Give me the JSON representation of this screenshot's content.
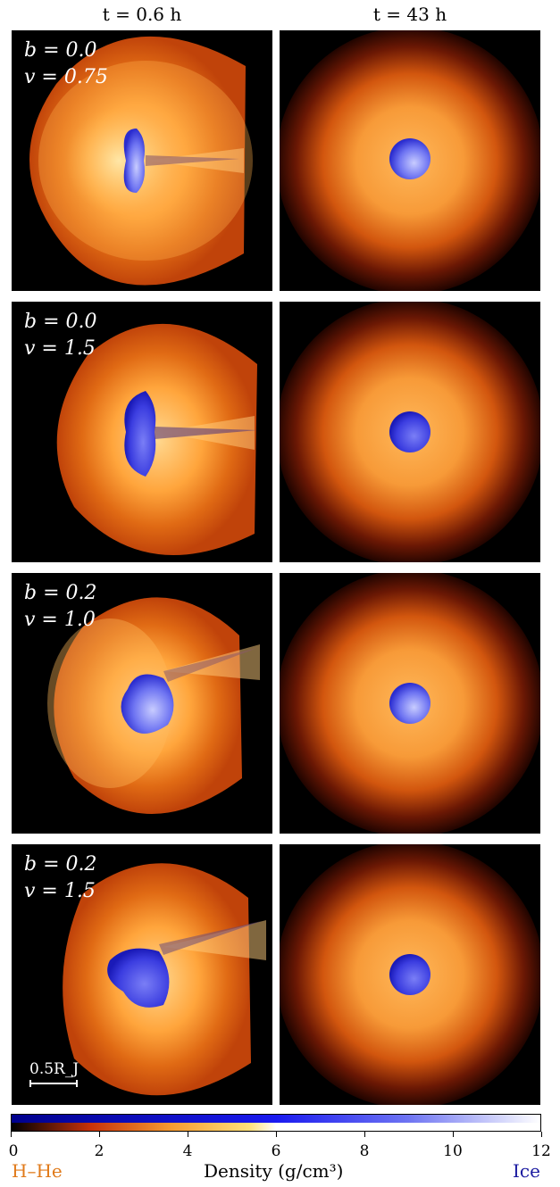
{
  "columns": [
    "t = 0.6 h",
    "t = 43 h"
  ],
  "rows": [
    {
      "b": "b = 0.0",
      "v": "v = 0.75"
    },
    {
      "b": "b = 0.0",
      "v": "v = 1.5"
    },
    {
      "b": "b = 0.2",
      "v": "v = 1.0"
    },
    {
      "b": "b = 0.2",
      "v": "v = 1.5"
    }
  ],
  "scale_bar": "0.5R_J",
  "colorbar": {
    "ticks": [
      "0",
      "2",
      "4",
      "6",
      "8",
      "10",
      "12"
    ],
    "left_label": "H–He",
    "center_label": "Density (g/cm³)",
    "right_label": "Ice",
    "colors": {
      "hhe_low": "#000000",
      "hhe_mid": "#c8320a",
      "hhe_high": "#ffffff",
      "ice_low": "#00008c",
      "ice_high": "#ffffff",
      "hhe_text": "#e07a1a",
      "ice_text": "#1a1aa0"
    }
  }
}
